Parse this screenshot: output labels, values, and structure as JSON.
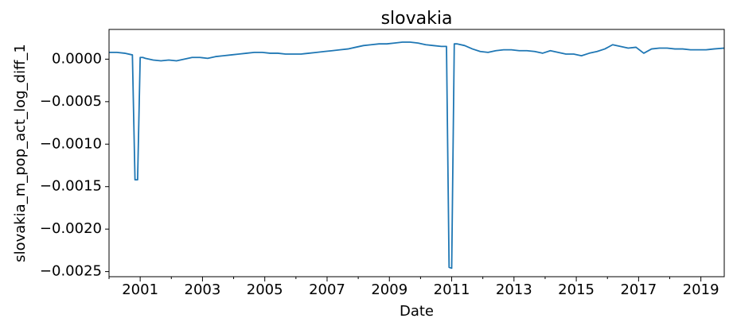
{
  "chart_data": {
    "type": "line",
    "title": "slovakia",
    "xlabel": "Date",
    "ylabel": "slovakia_m_pop_act_log_diff_1",
    "xlim": [
      "2000-01",
      "2019-10"
    ],
    "ylim": [
      -0.00256,
      0.00035
    ],
    "x_ticks": [
      "2001",
      "2003",
      "2005",
      "2007",
      "2009",
      "2011",
      "2013",
      "2015",
      "2017",
      "2019"
    ],
    "y_ticks": [
      0.0,
      -0.0005,
      -0.001,
      -0.0015,
      -0.002,
      -0.0025
    ],
    "y_tick_labels": [
      "0.0000",
      "−0.0005",
      "−0.0010",
      "−0.0015",
      "−0.0020",
      "−0.0025"
    ],
    "grid": false,
    "legend": "none",
    "line_color": "#1f77b4",
    "series": [
      {
        "x": [
          "2000-01",
          "2000-04",
          "2000-07",
          "2000-10",
          "2000-11",
          "2000-12",
          "2001-01",
          "2001-02",
          "2001-03",
          "2001-06",
          "2001-09",
          "2001-12",
          "2002-03",
          "2002-06",
          "2002-09",
          "2002-12",
          "2003-03",
          "2003-06",
          "2003-09",
          "2003-12",
          "2004-03",
          "2004-06",
          "2004-09",
          "2004-12",
          "2005-03",
          "2005-06",
          "2005-09",
          "2005-12",
          "2006-03",
          "2006-06",
          "2006-09",
          "2006-12",
          "2007-03",
          "2007-06",
          "2007-09",
          "2007-12",
          "2008-03",
          "2008-06",
          "2008-09",
          "2008-12",
          "2009-03",
          "2009-06",
          "2009-09",
          "2009-12",
          "2010-03",
          "2010-06",
          "2010-09",
          "2010-11",
          "2010-12",
          "2011-01",
          "2011-02",
          "2011-03",
          "2011-06",
          "2011-09",
          "2011-12",
          "2012-03",
          "2012-06",
          "2012-09",
          "2012-12",
          "2013-03",
          "2013-06",
          "2013-09",
          "2013-12",
          "2014-03",
          "2014-06",
          "2014-09",
          "2014-12",
          "2015-03",
          "2015-06",
          "2015-09",
          "2015-12",
          "2016-03",
          "2016-06",
          "2016-09",
          "2016-12",
          "2017-03",
          "2017-06",
          "2017-09",
          "2017-12",
          "2018-03",
          "2018-06",
          "2018-09",
          "2018-12",
          "2019-03",
          "2019-06",
          "2019-10"
        ],
        "y": [
          8e-05,
          8e-05,
          7e-05,
          5e-05,
          -0.00142,
          -0.00142,
          2e-05,
          2e-05,
          1e-05,
          -1e-05,
          -2e-05,
          -1e-05,
          -2e-05,
          0.0,
          2e-05,
          2e-05,
          1e-05,
          3e-05,
          4e-05,
          5e-05,
          6e-05,
          7e-05,
          8e-05,
          8e-05,
          7e-05,
          7e-05,
          6e-05,
          6e-05,
          6e-05,
          7e-05,
          8e-05,
          9e-05,
          0.0001,
          0.00011,
          0.00012,
          0.00014,
          0.00016,
          0.00017,
          0.00018,
          0.00018,
          0.00019,
          0.0002,
          0.0002,
          0.00019,
          0.00017,
          0.00016,
          0.00015,
          0.00015,
          -0.00245,
          -0.00246,
          0.00018,
          0.00018,
          0.00016,
          0.00012,
          9e-05,
          8e-05,
          0.0001,
          0.00011,
          0.00011,
          0.0001,
          0.0001,
          9e-05,
          7e-05,
          0.0001,
          8e-05,
          6e-05,
          6e-05,
          4e-05,
          7e-05,
          9e-05,
          0.00012,
          0.00017,
          0.00015,
          0.00013,
          0.00014,
          7e-05,
          0.00012,
          0.00013,
          0.00013,
          0.00012,
          0.00012,
          0.00011,
          0.00011,
          0.00011,
          0.00012,
          0.00013
        ]
      }
    ]
  }
}
